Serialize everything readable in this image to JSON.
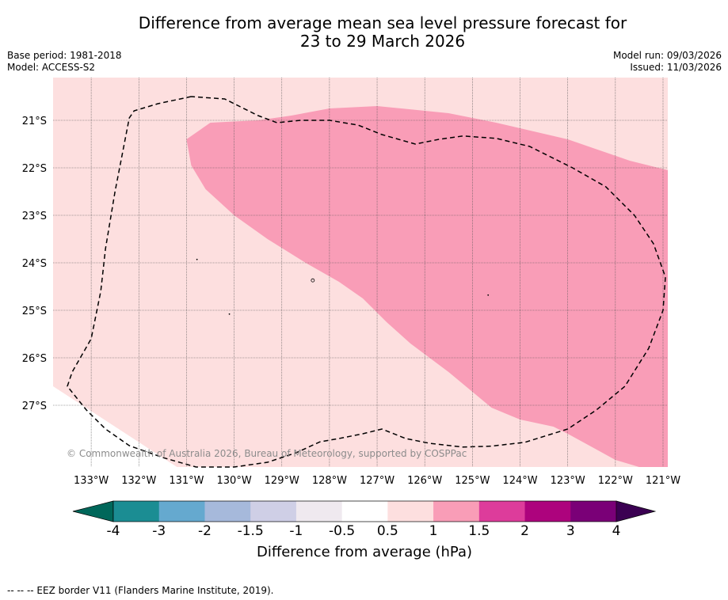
{
  "title_line1": "Difference from average mean sea level pressure forecast for",
  "title_line2": "23 to 29 March 2026",
  "base_period": "Base period: 1981-2018",
  "model": "Model: ACCESS-S2",
  "model_run": "Model run: 09/03/2026",
  "issued": "Issued: 11/03/2026",
  "copyright": "© Commonwealth of Australia 2026, Bureau of Meteorology, supported by COSPPac",
  "footer_note": "--  --  -- EEZ border V11 (Flanders Marine Institute, 2019).",
  "map": {
    "lon_range": [
      -133.8,
      -120.9
    ],
    "lat_range": [
      -28.3,
      -20.1
    ],
    "lat_ticks": [
      {
        "value": -21,
        "label": "21°S"
      },
      {
        "value": -22,
        "label": "22°S"
      },
      {
        "value": -23,
        "label": "23°S"
      },
      {
        "value": -24,
        "label": "24°S"
      },
      {
        "value": -25,
        "label": "25°S"
      },
      {
        "value": -26,
        "label": "26°S"
      },
      {
        "value": -27,
        "label": "27°S"
      }
    ],
    "lon_ticks": [
      {
        "value": -133,
        "label": "133°W"
      },
      {
        "value": -132,
        "label": "132°W"
      },
      {
        "value": -131,
        "label": "131°W"
      },
      {
        "value": -130,
        "label": "130°W"
      },
      {
        "value": -129,
        "label": "129°W"
      },
      {
        "value": -128,
        "label": "128°W"
      },
      {
        "value": -127,
        "label": "127°W"
      },
      {
        "value": -126,
        "label": "126°W"
      },
      {
        "value": -125,
        "label": "125°W"
      },
      {
        "value": -124,
        "label": "124°W"
      },
      {
        "value": -123,
        "label": "123°W"
      },
      {
        "value": -122,
        "label": "122°W"
      },
      {
        "value": -121,
        "label": "121°W"
      }
    ],
    "field_zones": [
      {
        "name": "light-pink-zone",
        "range": "0.5 to 1",
        "color": "#fddfdf",
        "points": [
          [
            -133.8,
            -20.1
          ],
          [
            -120.9,
            -20.1
          ],
          [
            -120.9,
            -28.3
          ],
          [
            -131.2,
            -28.3
          ],
          [
            -133.8,
            -26.6
          ]
        ]
      },
      {
        "name": "pink-zone",
        "range": "1 to 1.5",
        "color": "#f99db7",
        "points": [
          [
            -131.0,
            -21.4
          ],
          [
            -130.5,
            -21.05
          ],
          [
            -129.5,
            -21.0
          ],
          [
            -128.8,
            -20.9
          ],
          [
            -128.0,
            -20.75
          ],
          [
            -127.0,
            -20.7
          ],
          [
            -125.5,
            -20.85
          ],
          [
            -124.5,
            -21.05
          ],
          [
            -123.0,
            -21.4
          ],
          [
            -121.7,
            -21.85
          ],
          [
            -120.9,
            -22.05
          ],
          [
            -120.9,
            -28.3
          ],
          [
            -121.5,
            -28.3
          ],
          [
            -122.0,
            -28.15
          ],
          [
            -123.0,
            -27.6
          ],
          [
            -123.3,
            -27.45
          ],
          [
            -124.0,
            -27.3
          ],
          [
            -124.6,
            -27.05
          ],
          [
            -125.5,
            -26.3
          ],
          [
            -126.3,
            -25.7
          ],
          [
            -126.8,
            -25.25
          ],
          [
            -127.3,
            -24.75
          ],
          [
            -127.8,
            -24.4
          ],
          [
            -128.5,
            -24.0
          ],
          [
            -129.3,
            -23.5
          ],
          [
            -130.0,
            -23.0
          ],
          [
            -130.6,
            -22.45
          ],
          [
            -130.9,
            -21.95
          ]
        ]
      }
    ],
    "eez_border": [
      [
        -130.9,
        -20.5
      ],
      [
        -131.6,
        -20.65
      ],
      [
        -132.1,
        -20.8
      ],
      [
        -132.2,
        -20.95
      ],
      [
        -132.5,
        -22.5
      ],
      [
        -132.7,
        -23.7
      ],
      [
        -132.8,
        -24.6
      ],
      [
        -133.0,
        -25.6
      ],
      [
        -133.4,
        -26.3
      ],
      [
        -133.5,
        -26.6
      ],
      [
        -133.1,
        -27.1
      ],
      [
        -132.7,
        -27.5
      ],
      [
        -132.2,
        -27.85
      ],
      [
        -131.5,
        -28.1
      ],
      [
        -130.8,
        -28.3
      ],
      [
        -130.0,
        -28.3
      ],
      [
        -129.3,
        -28.2
      ],
      [
        -128.7,
        -28.0
      ],
      [
        -128.2,
        -27.77
      ],
      [
        -127.8,
        -27.7
      ],
      [
        -127.3,
        -27.6
      ],
      [
        -126.9,
        -27.5
      ],
      [
        -126.4,
        -27.7
      ],
      [
        -125.9,
        -27.8
      ],
      [
        -125.2,
        -27.88
      ],
      [
        -124.6,
        -27.86
      ],
      [
        -123.9,
        -27.78
      ],
      [
        -123.0,
        -27.5
      ],
      [
        -122.4,
        -27.1
      ],
      [
        -121.8,
        -26.6
      ],
      [
        -121.3,
        -25.8
      ],
      [
        -121.0,
        -25.0
      ],
      [
        -120.95,
        -24.3
      ],
      [
        -121.2,
        -23.6
      ],
      [
        -121.6,
        -23.0
      ],
      [
        -122.2,
        -22.4
      ],
      [
        -122.9,
        -22.0
      ],
      [
        -123.8,
        -21.55
      ],
      [
        -124.5,
        -21.38
      ],
      [
        -125.2,
        -21.33
      ],
      [
        -125.7,
        -21.4
      ],
      [
        -126.2,
        -21.5
      ],
      [
        -126.9,
        -21.3
      ],
      [
        -127.4,
        -21.1
      ],
      [
        -128.0,
        -21.0
      ],
      [
        -128.6,
        -21.0
      ],
      [
        -129.1,
        -21.05
      ],
      [
        -129.5,
        -20.9
      ],
      [
        -130.2,
        -20.55
      ],
      [
        -130.9,
        -20.5
      ]
    ],
    "islands": [
      {
        "name": "island-marker",
        "lon": -128.35,
        "lat": -24.37
      },
      {
        "name": "island-dot",
        "lon": -130.78,
        "lat": -23.93
      },
      {
        "name": "island-dot",
        "lon": -130.1,
        "lat": -25.08
      },
      {
        "name": "island-dot",
        "lon": -124.67,
        "lat": -24.68
      }
    ]
  },
  "colorbar": {
    "label": "Difference from average (hPa)",
    "min_color": "#00675a",
    "max_color": "#3b0052",
    "bins": [
      {
        "range": "-4 to -3",
        "color": "#1b8d93"
      },
      {
        "range": "-3 to -2",
        "color": "#65a9cf"
      },
      {
        "range": "-2 to -1.5",
        "color": "#a6b9db"
      },
      {
        "range": "-1.5 to -1",
        "color": "#cfcfe6"
      },
      {
        "range": "-1 to -0.5",
        "color": "#efe9ef"
      },
      {
        "range": "-0.5 to 0.5",
        "color": "#ffffff"
      },
      {
        "range": "0.5 to 1",
        "color": "#fddfdf"
      },
      {
        "range": "1 to 1.5",
        "color": "#f99db7"
      },
      {
        "range": "1.5 to 2",
        "color": "#dd3c9b"
      },
      {
        "range": "2 to 3",
        "color": "#ad037d"
      },
      {
        "range": "3 to 4",
        "color": "#7a0077"
      }
    ],
    "tick_labels": [
      "-4",
      "-3",
      "-2",
      "-1.5",
      "-1",
      "-0.5",
      "0.5",
      "1",
      "1.5",
      "2",
      "3",
      "4"
    ]
  }
}
